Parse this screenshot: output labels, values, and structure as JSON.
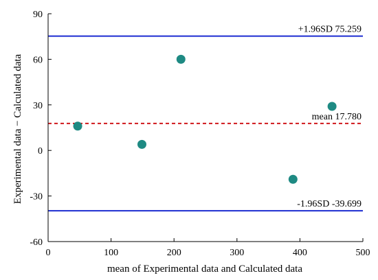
{
  "chart_data": {
    "type": "scatter",
    "xlabel": "mean of Experimental data and Calculated data",
    "ylabel": "Experimental data − Calculated data",
    "xlim": [
      0,
      500
    ],
    "ylim": [
      -60,
      90
    ],
    "x_ticks": [
      0,
      100,
      200,
      300,
      400,
      500
    ],
    "y_ticks": [
      -60,
      -30,
      0,
      30,
      60,
      90
    ],
    "grid": false,
    "points": [
      {
        "x": 47,
        "y": 16
      },
      {
        "x": 149,
        "y": 4
      },
      {
        "x": 211,
        "y": 60
      },
      {
        "x": 389,
        "y": -19
      },
      {
        "x": 451,
        "y": 29
      }
    ],
    "reference_lines": [
      {
        "value": 75.259,
        "label": "+1.96SD 75.259",
        "style": "solid",
        "color": "#1c2bd1"
      },
      {
        "value": 17.78,
        "label": "mean 17.780",
        "style": "dashed",
        "color": "#d0181c"
      },
      {
        "value": -39.699,
        "label": "-1.96SD -39.699",
        "style": "solid",
        "color": "#1c2bd1"
      }
    ],
    "point_color": "#1e8a83",
    "axis_color": "#000000"
  }
}
